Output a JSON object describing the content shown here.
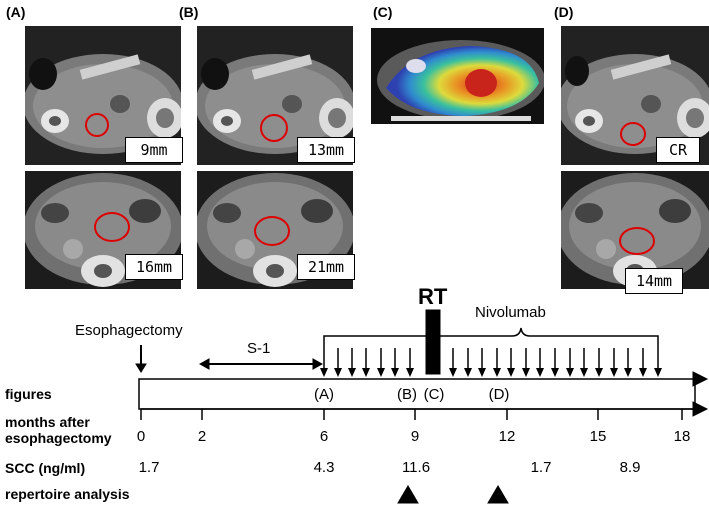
{
  "panels": {
    "A": {
      "label": "(A)",
      "top_size": "9mm",
      "bottom_size": "16mm"
    },
    "B": {
      "label": "(B)",
      "top_size": "13mm",
      "bottom_size": "21mm"
    },
    "C": {
      "label": "(C)"
    },
    "D": {
      "label": "(D)",
      "top_size": "CR",
      "bottom_size": "14mm"
    }
  },
  "timeline": {
    "esophagectomy": "Esophagectomy",
    "s1": "S-1",
    "rt": "RT",
    "nivolumab": "Nivolumab",
    "row_figures": "figures",
    "row_months_1": "months after",
    "row_months_2": "esophagectomy",
    "row_scc": "SCC (ng/ml)",
    "row_repertoire": "repertoire analysis",
    "ticks": [
      "0",
      "2",
      "6",
      "9",
      "12",
      "15",
      "18"
    ],
    "figure_marks": [
      "(A)",
      "(B)",
      "(C)",
      "(D)"
    ],
    "scc_values": [
      "1.7",
      "4.3",
      "11.6",
      "1.7",
      "8.9"
    ]
  }
}
